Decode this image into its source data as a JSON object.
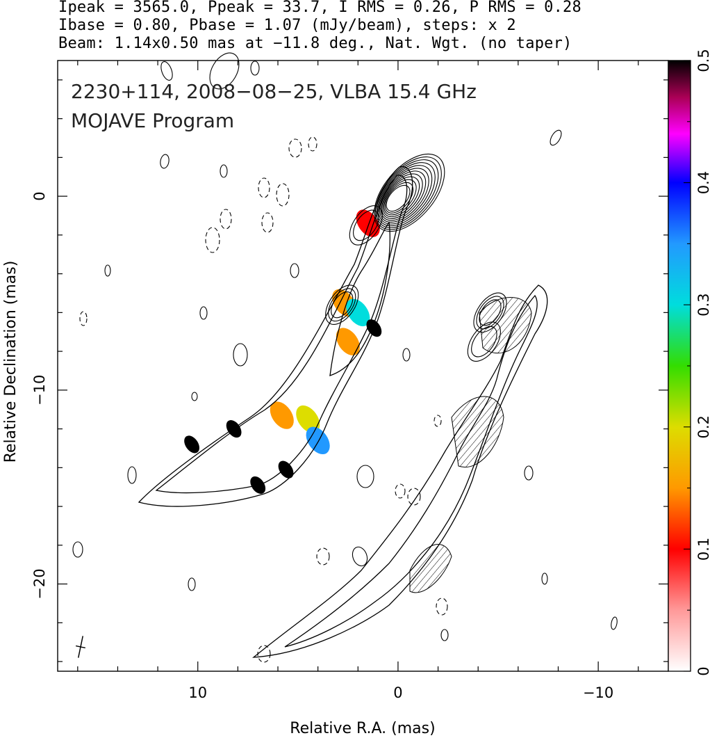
{
  "header": {
    "line1": "Ipeak = 3565.0, Ppeak = 33.7, I RMS = 0.26, P RMS = 0.28",
    "line2": "Ibase = 0.80, Pbase = 1.07 (mJy/beam), steps: x 2",
    "line3": "Beam: 1.14x0.50 mas at −11.8 deg., Nat. Wgt. (no taper)"
  },
  "annotation": {
    "line1": "2230+114, 2008−08−25, VLBA 15.4 GHz",
    "line2": "MOJAVE Program"
  },
  "chart_data": {
    "type": "contour image",
    "xlabel": "Relative R.A. (mas)",
    "ylabel": "Relative Declination (mas)",
    "xlim": [
      17,
      -13.5
    ],
    "ylim": [
      -24.5,
      7
    ],
    "x_ticks": [
      {
        "value": 10,
        "label": "10"
      },
      {
        "value": 0,
        "label": "0"
      },
      {
        "value": -10,
        "label": "−10"
      }
    ],
    "y_ticks": [
      {
        "value": 0,
        "label": "0"
      },
      {
        "value": -10,
        "label": "−10"
      },
      {
        "value": -20,
        "label": "−20"
      }
    ],
    "colorbar": {
      "range": [
        0,
        0.5
      ],
      "ticks": [
        {
          "value": 0,
          "label": "0"
        },
        {
          "value": 0.1,
          "label": "0.1"
        },
        {
          "value": 0.2,
          "label": "0.2"
        },
        {
          "value": 0.3,
          "label": "0.3"
        },
        {
          "value": 0.4,
          "label": "0.4"
        },
        {
          "value": 0.5,
          "label": "0.5"
        }
      ],
      "stops": [
        {
          "v": 0.0,
          "c": "#ffffff"
        },
        {
          "v": 0.05,
          "c": "#ff9999"
        },
        {
          "v": 0.1,
          "c": "#ff0000"
        },
        {
          "v": 0.15,
          "c": "#ff9900"
        },
        {
          "v": 0.2,
          "c": "#dddd00"
        },
        {
          "v": 0.25,
          "c": "#33dd00"
        },
        {
          "v": 0.3,
          "c": "#00dddd"
        },
        {
          "v": 0.35,
          "c": "#2299ff"
        },
        {
          "v": 0.4,
          "c": "#0000ff"
        },
        {
          "v": 0.44,
          "c": "#ff00ff"
        },
        {
          "v": 0.47,
          "c": "#aa0055"
        },
        {
          "v": 0.5,
          "c": "#000000"
        }
      ]
    },
    "core": {
      "ra": -0.3,
      "dec": 0.3
    },
    "core_levels": 12,
    "jet_components": [
      {
        "ra": 2.8,
        "dec": -5.6,
        "levels": 3
      },
      {
        "ra": 1.6,
        "dec": -1.5,
        "levels": 2
      },
      {
        "ra": -4.6,
        "dec": -6.0,
        "levels": 3
      },
      {
        "ra": -4.3,
        "dec": -7.5,
        "levels": 2
      }
    ],
    "polarization_regions": [
      {
        "ra": 1.5,
        "dec": -1.4,
        "value": 0.1
      },
      {
        "ra": 2.7,
        "dec": -5.5,
        "value": 0.14
      },
      {
        "ra": 2.0,
        "dec": -6.0,
        "value": 0.26
      },
      {
        "ra": 2.5,
        "dec": -7.5,
        "value": 0.15
      },
      {
        "ra": 1.2,
        "dec": -6.8,
        "value": 0.5
      },
      {
        "ra": 4.5,
        "dec": -11.5,
        "value": 0.2
      },
      {
        "ra": 4.0,
        "dec": -12.6,
        "value": 0.34
      },
      {
        "ra": 8.2,
        "dec": -12.0,
        "value": 0.5
      },
      {
        "ra": 5.6,
        "dec": -14.1,
        "value": 0.5
      },
      {
        "ra": 7.0,
        "dec": -14.9,
        "value": 0.5
      },
      {
        "ra": 10.3,
        "dec": -12.8,
        "value": 0.5
      },
      {
        "ra": 5.8,
        "dec": -11.3,
        "value": 0.15
      }
    ],
    "beam": {
      "major": 1.14,
      "minor": 0.5,
      "pa_deg": -11.8
    }
  }
}
